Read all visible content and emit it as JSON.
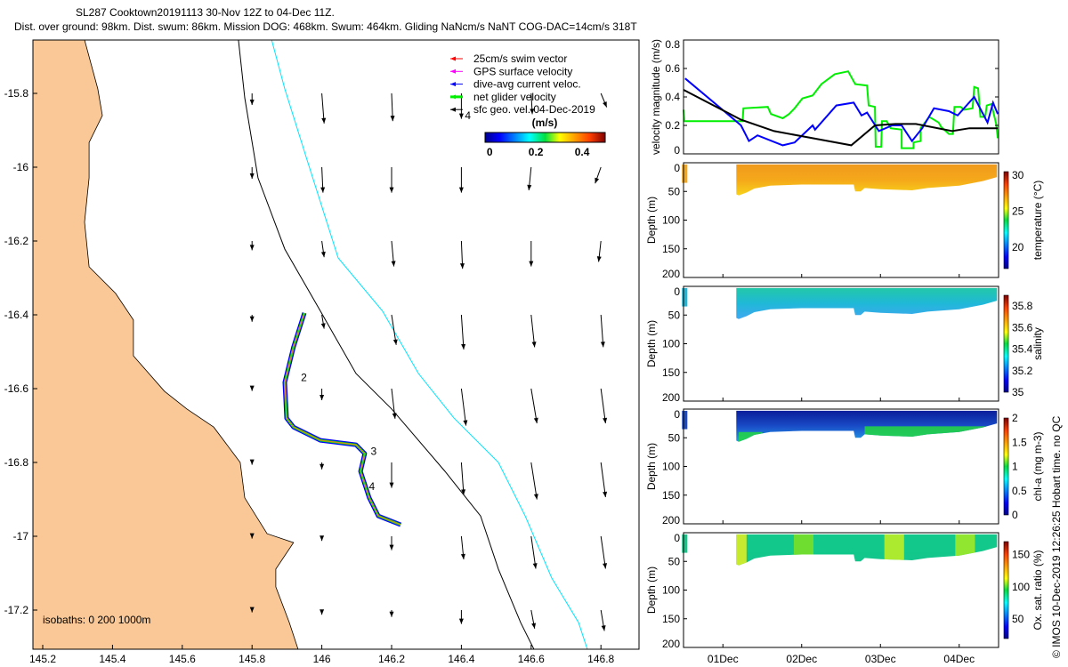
{
  "title": {
    "line1": "SL287 Cooktown20191113 30-Nov 12Z to 04-Dec 11Z.",
    "line2": "Dist. over ground: 98km. Dist. swum: 86km. Mission DOG: 468km. Swum: 464km. Gliding NaNcm/s NaNT COG-DAC=14cm/s 318T"
  },
  "credit": "© IMOS 10-Dec-2019 12:26:25 Hobart time. no QC",
  "colors": {
    "land": "#F9C896",
    "isobath200": "#000000",
    "isobath1000": "#00E5FF",
    "swim": "#FF0000",
    "gps": "#FF00FF",
    "dac": "#0000FF",
    "net": "#00EE00",
    "geo": "#000000"
  },
  "chart_data": [
    {
      "type": "map",
      "xlim": [
        145.17,
        146.91
      ],
      "ylim": [
        -17.3,
        -15.655
      ],
      "xticks": [
        "145.2",
        "145.4",
        "145.6",
        "145.8",
        "146",
        "146.2",
        "146.4",
        "146.6",
        "146.8"
      ],
      "yticks": [
        "-15.8",
        "-16",
        "-16.2",
        "-16.4",
        "-16.6",
        "-16.8",
        "-17",
        "-17.2"
      ],
      "legend": [
        "25cm/s swim vector",
        "GPS surface velocity",
        "dive-avg current veloc.",
        "net glider velocity",
        "sfc geo. vel. 04-Dec-2019"
      ],
      "colorbar": {
        "label": "(m/s)",
        "ticks": [
          "0",
          "0.2",
          "0.4"
        ],
        "range": [
          -0.02,
          0.5
        ]
      },
      "isobath_label": "isobaths: 0   200  1000m",
      "coastline": [
        [
          145.32,
          -15.655
        ],
        [
          145.358,
          -15.788
        ],
        [
          145.371,
          -15.86
        ],
        [
          145.333,
          -15.933
        ],
        [
          145.333,
          -16.029
        ],
        [
          145.32,
          -16.149
        ],
        [
          145.333,
          -16.27
        ],
        [
          145.409,
          -16.342
        ],
        [
          145.46,
          -16.414
        ],
        [
          145.46,
          -16.511
        ],
        [
          145.549,
          -16.607
        ],
        [
          145.613,
          -16.655
        ],
        [
          145.69,
          -16.704
        ],
        [
          145.766,
          -16.8
        ],
        [
          145.779,
          -16.896
        ],
        [
          145.843,
          -16.993
        ],
        [
          145.919,
          -17.017
        ],
        [
          145.868,
          -17.089
        ],
        [
          145.868,
          -17.137
        ],
        [
          145.907,
          -17.234
        ],
        [
          145.932,
          -17.306
        ]
      ],
      "isobath200": [
        [
          145.761,
          -15.655
        ],
        [
          145.779,
          -15.812
        ],
        [
          145.817,
          -16.029
        ],
        [
          145.894,
          -16.222
        ],
        [
          145.996,
          -16.39
        ],
        [
          146.098,
          -16.559
        ],
        [
          146.2,
          -16.655
        ],
        [
          146.353,
          -16.824
        ],
        [
          146.455,
          -16.945
        ],
        [
          146.506,
          -17.089
        ],
        [
          146.57,
          -17.234
        ],
        [
          146.608,
          -17.306
        ]
      ],
      "isobath1000": [
        [
          145.856,
          -15.655
        ],
        [
          145.894,
          -15.788
        ],
        [
          145.958,
          -15.981
        ],
        [
          146.047,
          -16.246
        ],
        [
          146.174,
          -16.39
        ],
        [
          146.277,
          -16.559
        ],
        [
          146.379,
          -16.68
        ],
        [
          146.506,
          -16.8
        ],
        [
          146.583,
          -16.945
        ],
        [
          146.659,
          -17.113
        ],
        [
          146.736,
          -17.234
        ],
        [
          146.761,
          -17.306
        ]
      ],
      "track": [
        [
          145.95,
          -16.395
        ],
        [
          145.919,
          -16.487
        ],
        [
          145.894,
          -16.583
        ],
        [
          145.899,
          -16.68
        ],
        [
          145.919,
          -16.704
        ],
        [
          145.996,
          -16.74
        ],
        [
          146.098,
          -16.752
        ],
        [
          146.123,
          -16.776
        ],
        [
          146.111,
          -16.824
        ],
        [
          146.136,
          -16.896
        ],
        [
          146.162,
          -16.945
        ],
        [
          146.226,
          -16.969
        ]
      ],
      "track_labels": [
        {
          "text": "2",
          "lon": 145.94,
          "lat": -16.58
        },
        {
          "text": "3",
          "lon": 146.14,
          "lat": -16.78
        },
        {
          "text": "4",
          "lon": 146.135,
          "lat": -16.875
        },
        {
          "text": "4",
          "lon": 146.41,
          "lat": -15.87
        }
      ],
      "vector_grid": {
        "lons": [
          145.8,
          146.0,
          146.2,
          146.4,
          146.6,
          146.8
        ],
        "lats": [
          -15.8,
          -16.0,
          -16.2,
          -16.4,
          -16.6,
          -16.8,
          -17.0,
          -17.2
        ],
        "u": [
          [
            0.0,
            0.02,
            0.01,
            0.0,
            0.01,
            0.05
          ],
          [
            0.0,
            0.01,
            0.0,
            0.0,
            -0.02,
            -0.05
          ],
          [
            0.0,
            0.02,
            0.02,
            0.01,
            0.0,
            -0.02
          ],
          [
            0.0,
            0.02,
            0.04,
            0.02,
            0.03,
            0.02
          ],
          [
            0.0,
            0.0,
            0.03,
            0.04,
            0.05,
            0.04
          ],
          [
            0.0,
            0.0,
            0.0,
            0.02,
            0.05,
            0.04
          ],
          [
            0.0,
            0.0,
            0.0,
            0.02,
            0.04,
            0.04
          ],
          [
            0.0,
            0.0,
            0.0,
            0.0,
            0.03,
            0.03
          ]
        ],
        "v": [
          [
            -0.1,
            -0.26,
            -0.24,
            -0.22,
            -0.18,
            -0.12
          ],
          [
            -0.1,
            -0.22,
            -0.22,
            -0.22,
            -0.2,
            -0.14
          ],
          [
            -0.08,
            -0.14,
            -0.22,
            -0.24,
            -0.22,
            -0.18
          ],
          [
            -0.06,
            -0.12,
            -0.26,
            -0.3,
            -0.28,
            -0.28
          ],
          [
            -0.02,
            -0.1,
            -0.26,
            -0.32,
            -0.3,
            -0.3
          ],
          [
            -0.02,
            -0.06,
            -0.22,
            -0.28,
            -0.32,
            -0.3
          ],
          [
            -0.02,
            -0.04,
            -0.12,
            -0.2,
            -0.28,
            -0.28
          ],
          [
            -0.02,
            -0.04,
            -0.06,
            -0.12,
            -0.16,
            -0.18
          ]
        ]
      }
    },
    {
      "type": "line",
      "ylabel": "velocity magnitude (m/s)",
      "ylim": [
        0,
        0.8
      ],
      "yticks": [
        "0",
        "0.2",
        "0.4",
        "0.6",
        "0.8"
      ],
      "xlim_days": [
        0.5,
        4.5
      ],
      "series": [
        {
          "name": "net glider velocity",
          "color": "#00EE00",
          "points": [
            [
              0.5,
              0.31
            ],
            [
              0.51,
              0.23
            ],
            [
              1.25,
              0.23
            ],
            [
              1.26,
              0.32
            ],
            [
              1.57,
              0.33
            ],
            [
              1.61,
              0.28
            ],
            [
              1.76,
              0.25
            ],
            [
              1.84,
              0.28
            ],
            [
              1.91,
              0.32
            ],
            [
              2.01,
              0.39
            ],
            [
              2.14,
              0.41
            ],
            [
              2.25,
              0.49
            ],
            [
              2.42,
              0.56
            ],
            [
              2.59,
              0.58
            ],
            [
              2.68,
              0.49
            ],
            [
              2.83,
              0.48
            ],
            [
              2.85,
              0.34
            ],
            [
              2.93,
              0.33
            ],
            [
              2.94,
              0.05
            ],
            [
              3.01,
              0.05
            ],
            [
              3.02,
              0.23
            ],
            [
              3.08,
              0.23
            ],
            [
              3.13,
              0.18
            ],
            [
              3.27,
              0.17
            ],
            [
              3.27,
              0.04
            ],
            [
              3.42,
              0.04
            ],
            [
              3.42,
              0.08
            ],
            [
              3.51,
              0.09
            ],
            [
              3.51,
              0.18
            ],
            [
              3.62,
              0.26
            ],
            [
              3.74,
              0.22
            ],
            [
              3.77,
              0.19
            ],
            [
              3.87,
              0.14
            ],
            [
              3.92,
              0.14
            ],
            [
              3.94,
              0.33
            ],
            [
              4.02,
              0.33
            ],
            [
              4.06,
              0.31
            ],
            [
              4.17,
              0.32
            ],
            [
              4.19,
              0.47
            ],
            [
              4.24,
              0.46
            ],
            [
              4.27,
              0.26
            ],
            [
              4.33,
              0.26
            ],
            [
              4.35,
              0.34
            ],
            [
              4.41,
              0.35
            ],
            [
              4.47,
              0.21
            ],
            [
              4.49,
              0.11
            ]
          ]
        },
        {
          "name": "dive-avg current veloc.",
          "color": "#0000FF",
          "points": [
            [
              0.52,
              0.53
            ],
            [
              0.93,
              0.34
            ],
            [
              1.23,
              0.2
            ],
            [
              1.33,
              0.09
            ],
            [
              1.44,
              0.13
            ],
            [
              1.76,
              0.06
            ],
            [
              1.91,
              0.08
            ],
            [
              2.14,
              0.2
            ],
            [
              2.17,
              0.17
            ],
            [
              2.44,
              0.34
            ],
            [
              2.66,
              0.36
            ],
            [
              2.76,
              0.27
            ],
            [
              2.83,
              0.29
            ],
            [
              2.98,
              0.16
            ],
            [
              3.15,
              0.2
            ],
            [
              3.27,
              0.2
            ],
            [
              3.4,
              0.09
            ],
            [
              3.53,
              0.18
            ],
            [
              3.68,
              0.32
            ],
            [
              3.87,
              0.3
            ],
            [
              3.98,
              0.27
            ],
            [
              4.19,
              0.4
            ],
            [
              4.36,
              0.22
            ],
            [
              4.43,
              0.36
            ],
            [
              4.49,
              0.28
            ]
          ]
        },
        {
          "name": "sfc geo. vel.",
          "color": "#000000",
          "points": [
            [
              0.5,
              0.45
            ],
            [
              1.23,
              0.24
            ],
            [
              1.65,
              0.16
            ],
            [
              2.14,
              0.11
            ],
            [
              2.63,
              0.06
            ],
            [
              2.93,
              0.2
            ],
            [
              3.19,
              0.21
            ],
            [
              3.45,
              0.21
            ],
            [
              3.91,
              0.16
            ],
            [
              4.13,
              0.18
            ],
            [
              4.49,
              0.18
            ]
          ]
        }
      ]
    },
    {
      "type": "heatmap",
      "sections": [
        {
          "name": "temperature",
          "cbar_label": "temperature (°C)",
          "cbar_ticks": [
            "20",
            "25",
            "30"
          ],
          "cbar_range": [
            17,
            30.5
          ],
          "cbar_tick_values": [
            20,
            25,
            30
          ],
          "gradient": [
            "#F09A1E",
            "#F5A81A",
            "#F8D21A"
          ],
          "patches": []
        },
        {
          "name": "salinity",
          "cbar_label": "salinity",
          "cbar_ticks": [
            "35",
            "35.2",
            "35.4",
            "35.6",
            "35.8"
          ],
          "cbar_range": [
            35,
            35.9
          ],
          "cbar_tick_values": [
            35,
            35.2,
            35.4,
            35.6,
            35.8
          ],
          "gradient": [
            "#22C8A8",
            "#20B8D8",
            "#40A8F0"
          ],
          "patches": []
        },
        {
          "name": "chl-a",
          "cbar_label": "chl-a (mg m-3)",
          "cbar_ticks": [
            "0",
            "0.5",
            "1",
            "1.5",
            "2"
          ],
          "cbar_range": [
            0,
            2
          ],
          "cbar_tick_values": [
            0,
            0.5,
            1,
            1.5,
            2
          ],
          "gradient": [
            "#0A1E9A",
            "#1A4CC8",
            "#24A0E8"
          ],
          "patches": [
            {
              "d0": 2.8,
              "d1": 4.45,
              "z0": 30,
              "z1": 50,
              "color": "#22D840"
            },
            {
              "d0": 1.2,
              "d1": 1.5,
              "z0": 40,
              "z1": 58,
              "color": "#22D840"
            }
          ]
        },
        {
          "name": "oxygen",
          "cbar_label": "Ox. sat. ratio (%)",
          "cbar_ticks": [
            "50",
            "100",
            "150"
          ],
          "cbar_range": [
            20,
            170
          ],
          "cbar_tick_values": [
            50,
            100,
            150
          ],
          "gradient": [
            "#12C88A",
            "#12C88A",
            "#14C48C"
          ],
          "patches": [
            {
              "d0": 1.17,
              "d1": 1.3,
              "z0": 0,
              "z1": 58,
              "color": "#E8F020"
            },
            {
              "d0": 1.9,
              "d1": 2.15,
              "z0": 0,
              "z1": 40,
              "color": "#80E020"
            },
            {
              "d0": 3.05,
              "d1": 3.3,
              "z0": 0,
              "z1": 48,
              "color": "#C8F020"
            },
            {
              "d0": 3.95,
              "d1": 4.2,
              "z0": 0,
              "z1": 42,
              "color": "#A8EC20"
            }
          ]
        }
      ],
      "ylabel": "Depth (m)",
      "ylim": [
        200,
        0
      ],
      "yticks": [
        "0",
        "50",
        "100",
        "150",
        "200"
      ],
      "xticks": [
        "01Dec",
        "02Dec",
        "03Dec",
        "04Dec"
      ],
      "xtick_days": [
        1,
        2,
        3,
        4
      ],
      "band_top": [
        [
          1.17,
          3
        ],
        [
          4.48,
          3
        ]
      ],
      "band_bottom": [
        [
          4.48,
          25
        ],
        [
          4.3,
          32
        ],
        [
          4.0,
          40
        ],
        [
          3.6,
          44
        ],
        [
          3.4,
          48
        ],
        [
          3.0,
          46
        ],
        [
          2.8,
          44
        ],
        [
          2.75,
          50
        ],
        [
          2.68,
          50
        ],
        [
          2.66,
          38
        ],
        [
          2.2,
          38
        ],
        [
          2.0,
          38
        ],
        [
          1.6,
          40
        ],
        [
          1.4,
          45
        ],
        [
          1.3,
          52
        ],
        [
          1.2,
          57
        ],
        [
          1.17,
          55
        ]
      ],
      "first_profile": {
        "day": 0.515,
        "z0": 3,
        "z1": 35
      }
    }
  ]
}
